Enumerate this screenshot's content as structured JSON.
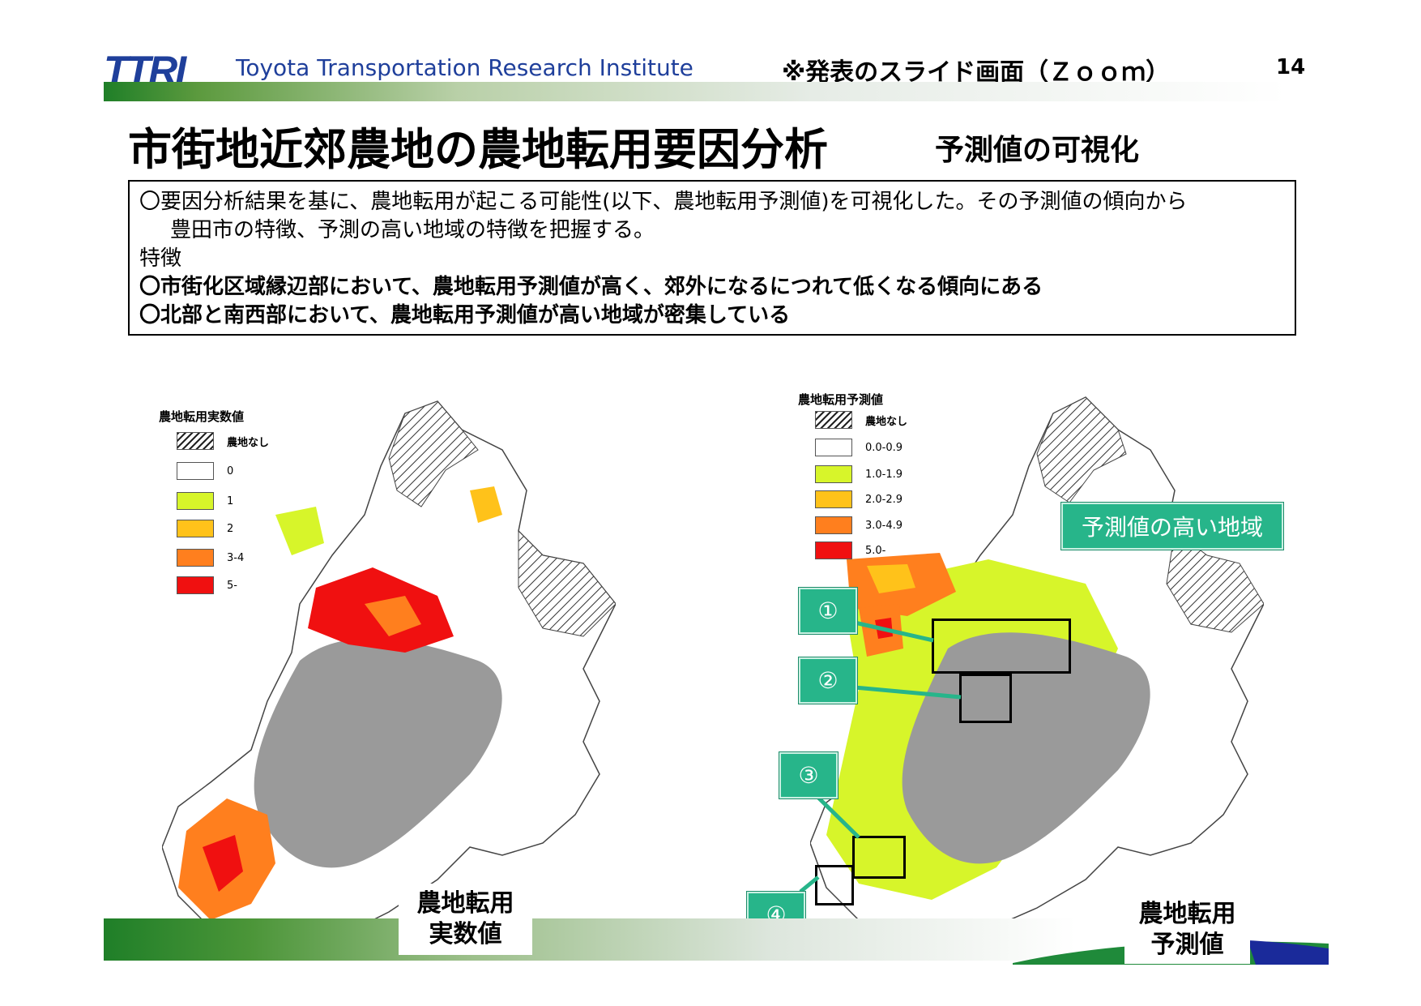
{
  "header": {
    "logo": "TTRI",
    "institute": "Toyota Transportation Research Institute",
    "note": "※発表のスライド画面（Ｚｏｏｍ）",
    "page_number": "14"
  },
  "title": "市街地近郊農地の農地転用要因分析",
  "subtitle": "予測値の可視化",
  "summary": {
    "line1": "〇要因分析結果を基に、農地転用が起こる可能性(以下、農地転用予測値)を可視化した。その予測値の傾向から",
    "line2": "豊田市の特徴、予測の高い地域の特徴を把握する。",
    "line3": "特徴",
    "line4": "〇市街化区域縁辺部において、農地転用予測値が高く、郊外になるにつれて低くなる傾向にある",
    "line5": "〇北部と南西部において、農地転用予測値が高い地域が密集している"
  },
  "left_map": {
    "legend_title": "農地転用実数値",
    "legend": [
      {
        "label": "農地なし",
        "color": "hatch"
      },
      {
        "label": "0",
        "color": "#ffffff"
      },
      {
        "label": "1",
        "color": "#d7f52a"
      },
      {
        "label": "2",
        "color": "#ffc21a"
      },
      {
        "label": "3-4",
        "color": "#ff7f1e"
      },
      {
        "label": "5-",
        "color": "#f01010"
      }
    ],
    "caption_line1": "農地転用",
    "caption_line2": "実数値"
  },
  "right_map": {
    "legend_title": "農地転用予測値",
    "legend": [
      {
        "label": "農地なし",
        "color": "hatch"
      },
      {
        "label": "0.0-0.9",
        "color": "#ffffff"
      },
      {
        "label": "1.0-1.9",
        "color": "#d7f52a"
      },
      {
        "label": "2.0-2.9",
        "color": "#ffc21a"
      },
      {
        "label": "3.0-4.9",
        "color": "#ff7f1e"
      },
      {
        "label": "5.0-",
        "color": "#f01010"
      }
    ],
    "highlight_label": "予測値の高い地域",
    "callouts": [
      "①",
      "②",
      "③",
      "④"
    ],
    "caption_line1": "農地転用",
    "caption_line2": "予測値"
  },
  "colors": {
    "gray_urban": "#9a9a9a",
    "accent_green": "#27b58a",
    "brand_blue": "#1f3f9b"
  }
}
